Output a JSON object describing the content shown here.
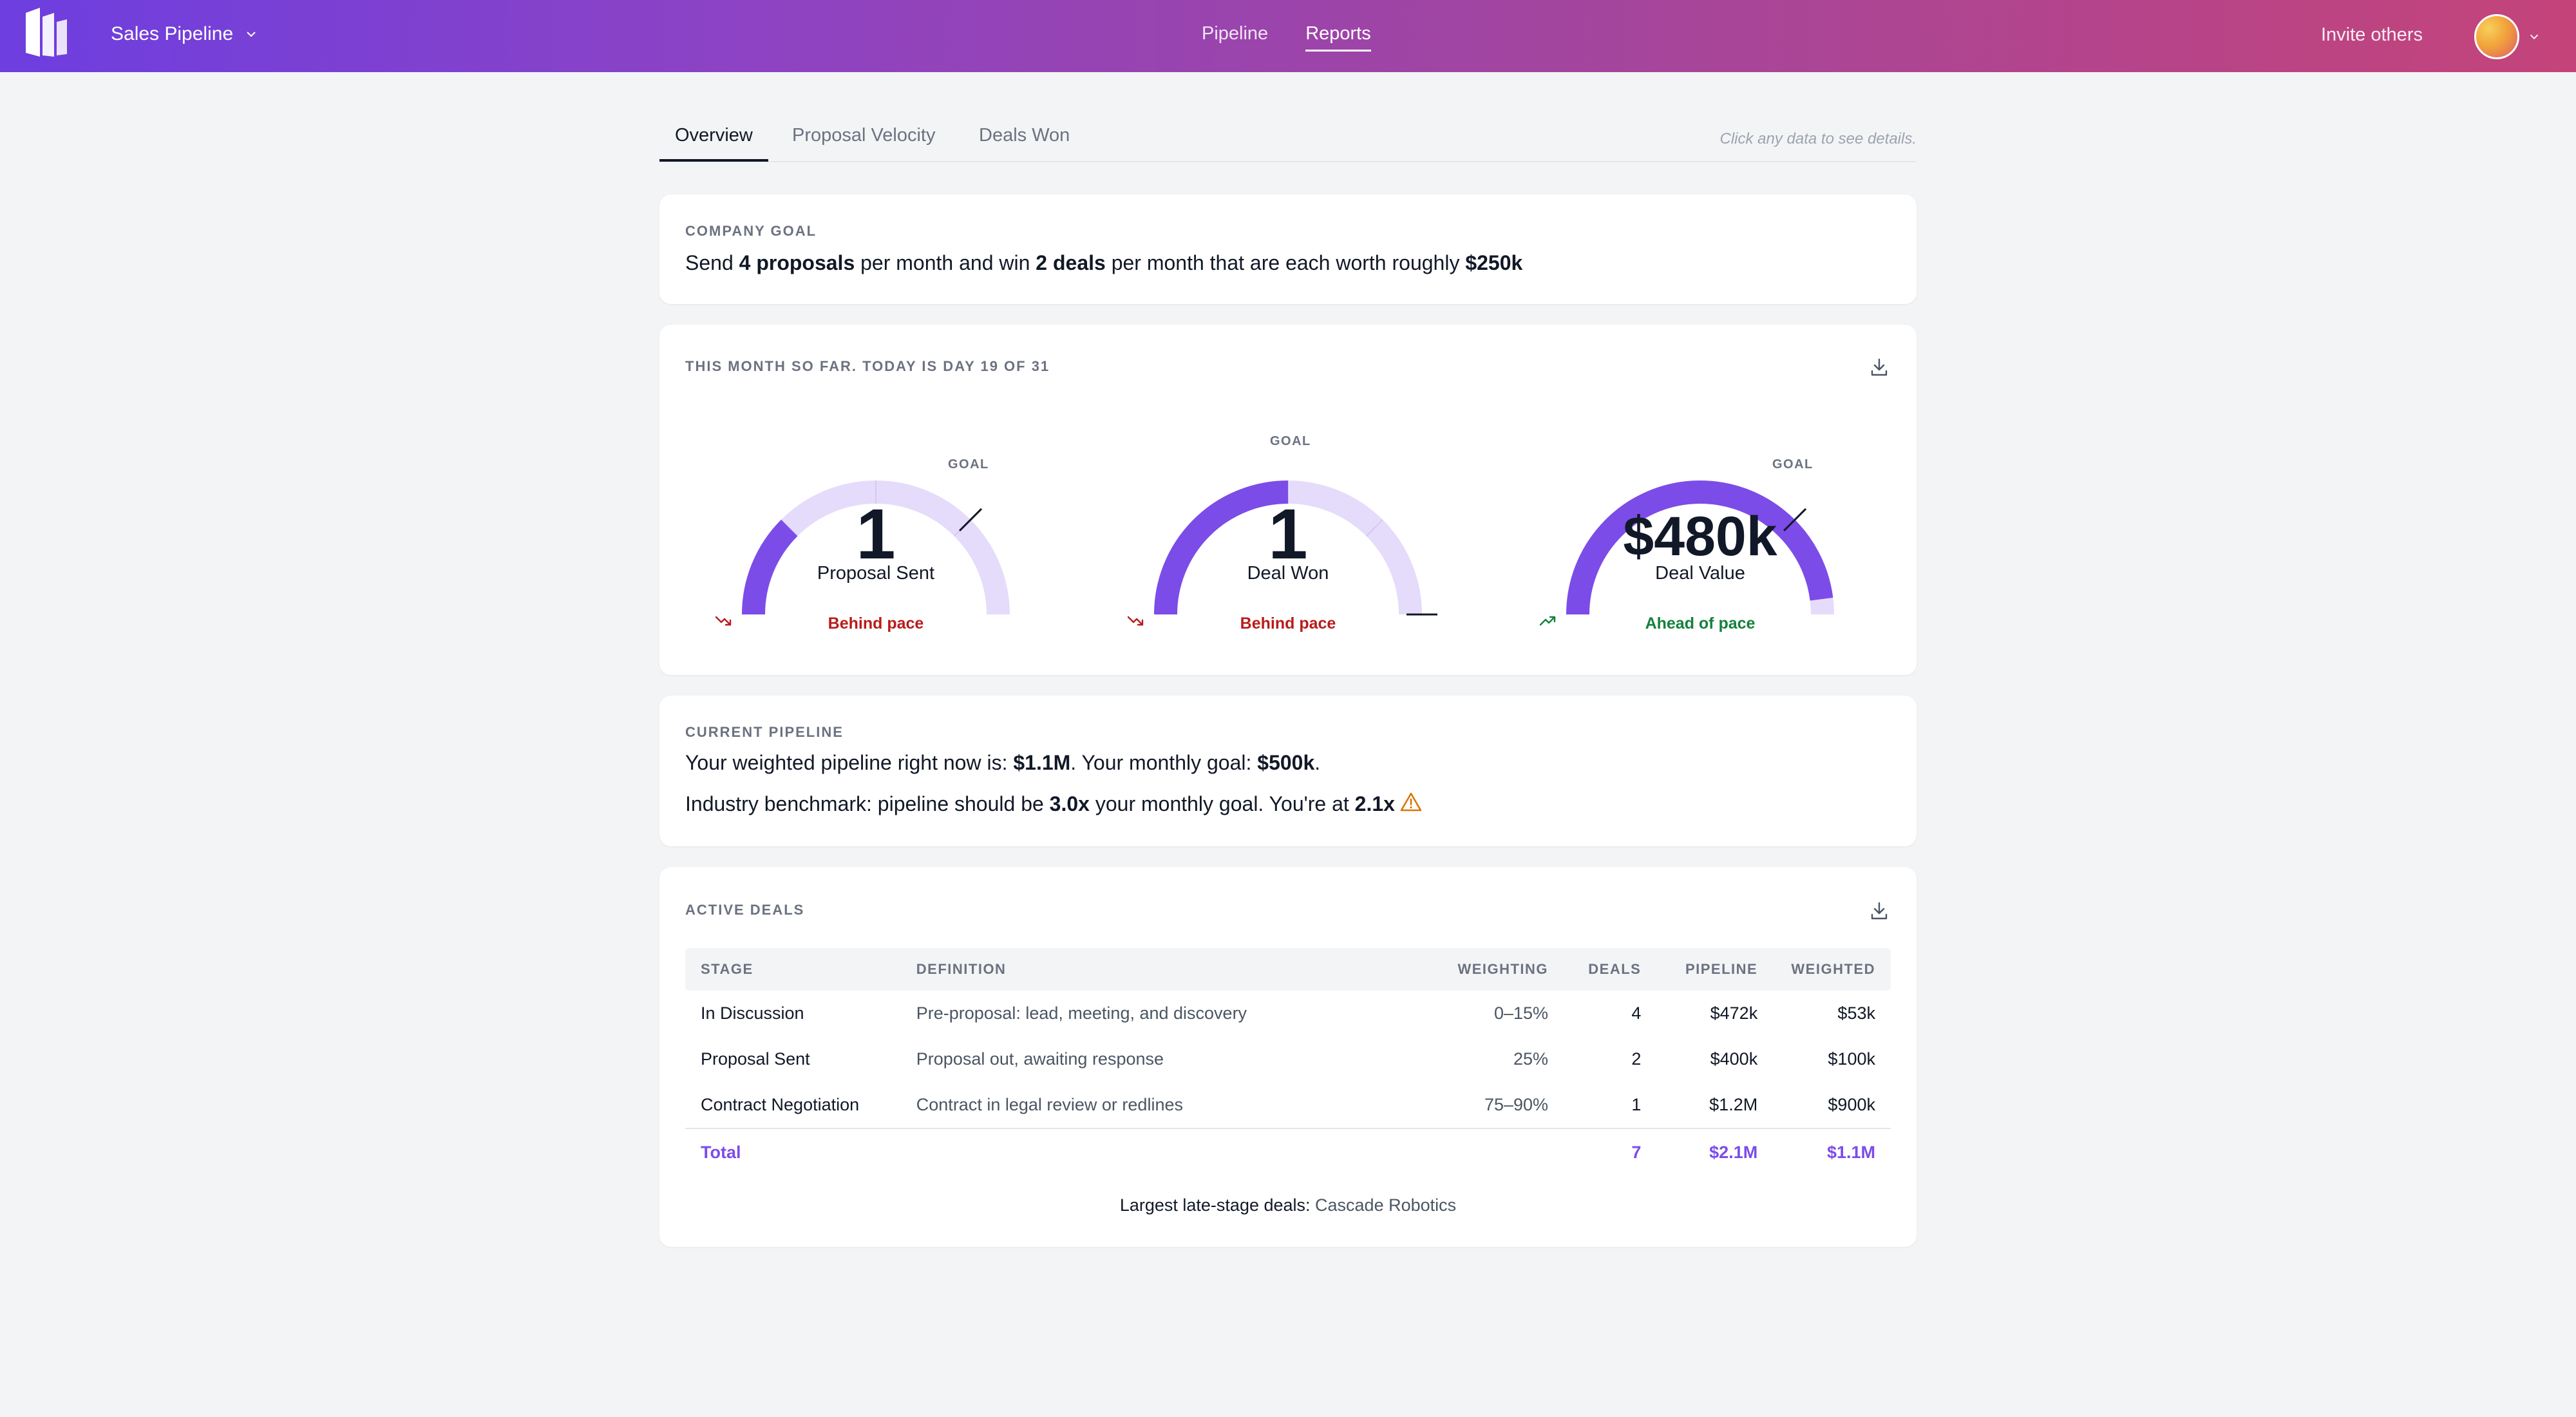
{
  "header": {
    "app_title": "Sales Pipeline",
    "nav": [
      {
        "label": "Pipeline",
        "active": false
      },
      {
        "label": "Reports",
        "active": true
      }
    ],
    "invite_label": "Invite others"
  },
  "tabs": {
    "items": [
      {
        "label": "Overview",
        "active": true
      },
      {
        "label": "Proposal Velocity",
        "active": false
      },
      {
        "label": "Deals Won",
        "active": false
      }
    ],
    "hint": "Click any data to see details."
  },
  "company_goal": {
    "label": "COMPANY GOAL",
    "t1": "Send ",
    "proposals": "4 proposals",
    "t2": " per month and win ",
    "deals": "2 deals",
    "t3": " per month that are each worth roughly ",
    "worth": "$250k"
  },
  "this_month": {
    "label": "THIS MONTH SO FAR. TODAY IS DAY 19 OF 31",
    "goal_label": "GOAL",
    "gauges": [
      {
        "value": "1",
        "label": "Proposal Sent",
        "pace": "Behind pace",
        "status": "behind",
        "fill_fraction": 0.25
      },
      {
        "value": "1",
        "label": "Deal Won",
        "pace": "Behind pace",
        "status": "behind",
        "fill_fraction": 0.5
      },
      {
        "value": "$480k",
        "label": "Deal Value",
        "pace": "Ahead of pace",
        "status": "ahead",
        "fill_fraction": 0.96
      }
    ]
  },
  "current_pipeline": {
    "label": "CURRENT PIPELINE",
    "l1a": "Your weighted pipeline right now is: ",
    "weighted": "$1.1M",
    "l1b": ". Your monthly goal: ",
    "goal": "$500k",
    "l1c": ".",
    "l2a": "Industry benchmark: pipeline should be ",
    "benchmark": "3.0x",
    "l2b": " your monthly goal. You're at ",
    "current": "2.1x"
  },
  "active_deals": {
    "label": "ACTIVE DEALS",
    "columns": [
      "STAGE",
      "DEFINITION",
      "WEIGHTING",
      "DEALS",
      "PIPELINE",
      "WEIGHTED"
    ],
    "rows": [
      {
        "stage": "In Discussion",
        "definition": "Pre-proposal: lead, meeting, and discovery",
        "weighting": "0–15%",
        "deals": "4",
        "pipeline": "$472k",
        "weighted": "$53k"
      },
      {
        "stage": "Proposal Sent",
        "definition": "Proposal out, awaiting response",
        "weighting": "25%",
        "deals": "2",
        "pipeline": "$400k",
        "weighted": "$100k"
      },
      {
        "stage": "Contract Negotiation",
        "definition": "Contract in legal review or redlines",
        "weighting": "75–90%",
        "deals": "1",
        "pipeline": "$1.2M",
        "weighted": "$900k"
      }
    ],
    "total": {
      "label": "Total",
      "deals": "7",
      "pipeline": "$2.1M",
      "weighted": "$1.1M"
    },
    "footer_label": "Largest late-stage deals: ",
    "footer_value": "Cascade Robotics"
  },
  "colors": {
    "accent": "#7c4ce8",
    "track": "#e5dcfb",
    "behind": "#b91c1c",
    "ahead": "#15803d"
  }
}
